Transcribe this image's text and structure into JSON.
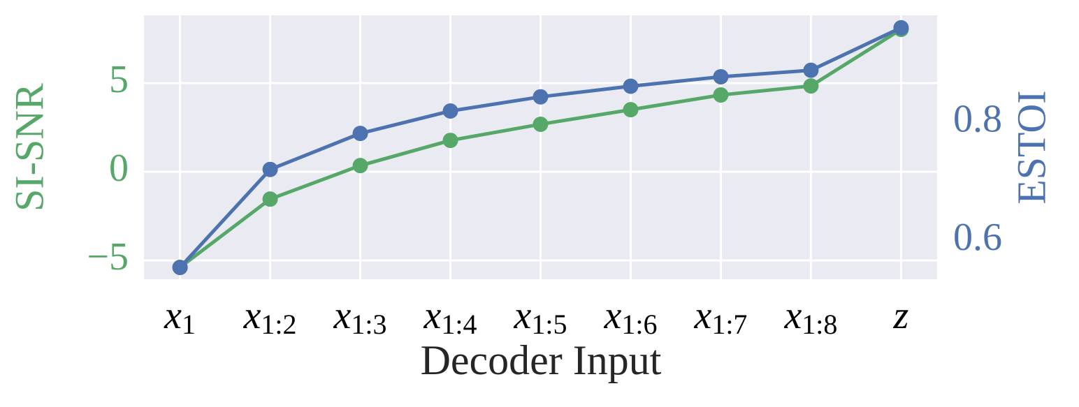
{
  "chart_data": {
    "type": "line",
    "x_label": "Decoder Input",
    "y_label": "SI-SNR",
    "y2_label": "ESTOI",
    "categories": [
      "x1",
      "x1:2",
      "x1:3",
      "x1:4",
      "x1:5",
      "x1:6",
      "x1:7",
      "x1:8",
      "z"
    ],
    "series": [
      {
        "name": "SI-SNR",
        "color": "#55a868",
        "values": [
          -5.39,
          -1.54,
          0.35,
          1.77,
          2.68,
          3.5,
          4.33,
          4.84,
          8.03
        ]
      },
      {
        "name": "ESTOI",
        "color": "#4c72b0",
        "axis": "y2",
        "values": [
          0.555,
          0.721,
          0.782,
          0.82,
          0.844,
          0.862,
          0.878,
          0.889,
          0.961
        ]
      }
    ],
    "ylim": [
      -6.06,
      8.82
    ],
    "yticks": [
      {
        "value": -5,
        "label": "−5"
      },
      0,
      5
    ],
    "y2lim": [
      0.535,
      0.982
    ],
    "y2ticks": [
      0.6,
      0.8
    ],
    "grid": true
  }
}
